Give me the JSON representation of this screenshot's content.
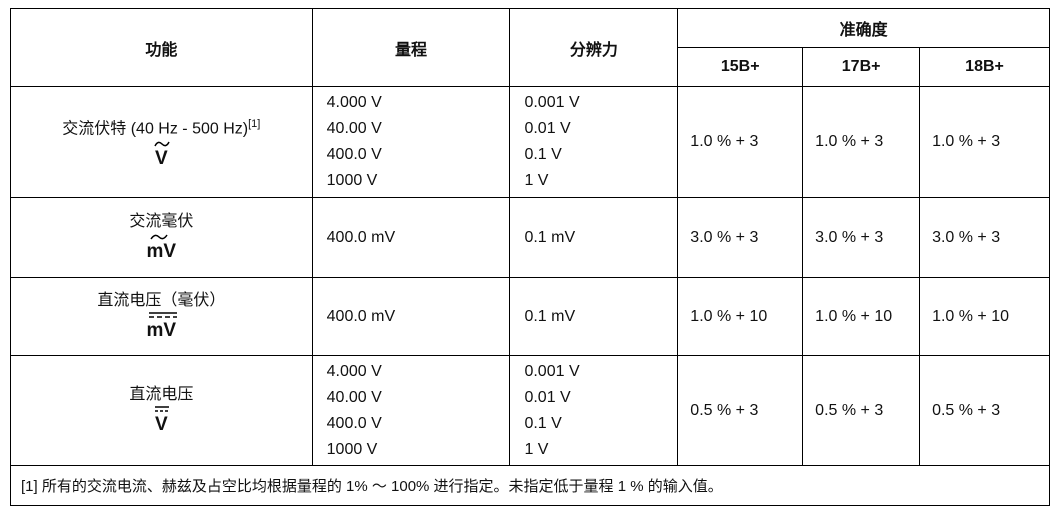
{
  "table": {
    "header": {
      "function": "功能",
      "range": "量程",
      "resolution": "分辨力",
      "accuracy": "准确度",
      "models": [
        "15B+",
        "17B+",
        "18B+"
      ]
    },
    "rows": [
      {
        "function": "交流伏特 (40 Hz - 500 Hz)",
        "note": "[1]",
        "symbol": "V",
        "ranges": [
          "4.000 V",
          "40.00 V",
          "400.0 V",
          "1000 V"
        ],
        "resolutions": [
          "0.001 V",
          "0.01 V",
          "0.1 V",
          "1 V"
        ],
        "accuracy": [
          "1.0 % + 3",
          "1.0 % + 3",
          "1.0 % + 3"
        ]
      },
      {
        "function": "交流毫伏",
        "symbol": "mV",
        "ranges": [
          "400.0 mV"
        ],
        "resolutions": [
          "0.1 mV"
        ],
        "accuracy": [
          "3.0 % + 3",
          "3.0 % + 3",
          "3.0 % + 3"
        ]
      },
      {
        "function": "直流电压（毫伏）",
        "symbol": "mV",
        "ranges": [
          "400.0 mV"
        ],
        "resolutions": [
          "0.1 mV"
        ],
        "accuracy": [
          "1.0 % + 10",
          "1.0 % + 10",
          "1.0 % + 10"
        ]
      },
      {
        "function": "直流电压",
        "symbol": "V",
        "ranges": [
          "4.000 V",
          "40.00 V",
          "400.0 V",
          "1000 V"
        ],
        "resolutions": [
          "0.001 V",
          "0.01 V",
          "0.1 V",
          "1 V"
        ],
        "accuracy": [
          "0.5 % + 3",
          "0.5 % + 3",
          "0.5 % + 3"
        ]
      }
    ],
    "footnote": "[1] 所有的交流电流、赫兹及占空比均根据量程的 1% ～ 100% 进行指定。未指定低于量程 1 % 的输入值。"
  }
}
